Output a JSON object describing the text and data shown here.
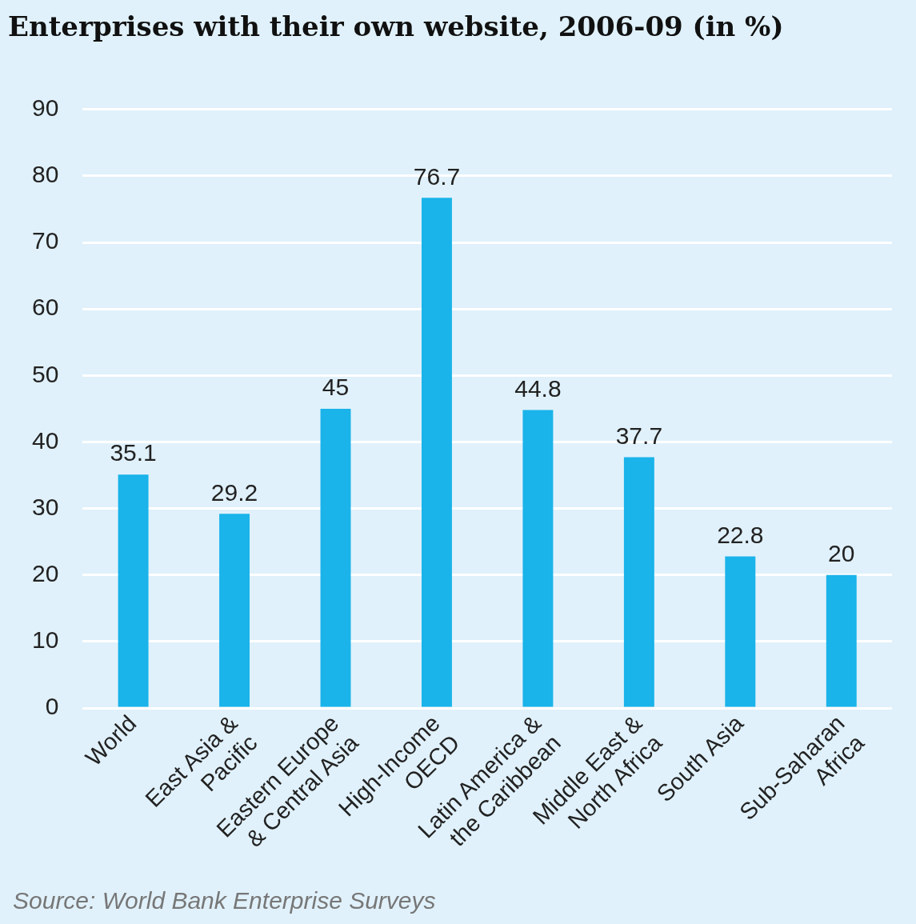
{
  "chart_data": {
    "type": "bar",
    "title": "Enterprises with their own website, 2006-09 (in %)",
    "categories": [
      "World",
      "East Asia &\nPacific",
      "Eastern Europe\n& Central Asia",
      "High-Income\nOECD",
      "Latin America &\nthe Caribbean",
      "Middle East &\nNorth Africa",
      "South Asia",
      "Sub-Saharan\nAfrica"
    ],
    "values": [
      35.1,
      29.2,
      45,
      76.7,
      44.8,
      37.7,
      22.8,
      20
    ],
    "color": "#1ab3ea",
    "ylim": [
      0,
      90
    ],
    "yticks": [
      0,
      10,
      20,
      30,
      40,
      50,
      60,
      70,
      80,
      90
    ],
    "grid": "y",
    "legend": false,
    "data_labels": true,
    "annotations": [
      "Source: World Bank Enterprise Surveys"
    ]
  }
}
